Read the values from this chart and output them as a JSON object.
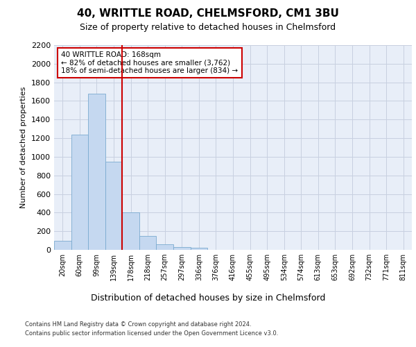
{
  "title": "40, WRITTLE ROAD, CHELMSFORD, CM1 3BU",
  "subtitle": "Size of property relative to detached houses in Chelmsford",
  "xlabel_bottom": "Distribution of detached houses by size in Chelmsford",
  "ylabel": "Number of detached properties",
  "footnote1": "Contains HM Land Registry data © Crown copyright and database right 2024.",
  "footnote2": "Contains public sector information licensed under the Open Government Licence v3.0.",
  "categories": [
    "20sqm",
    "60sqm",
    "99sqm",
    "139sqm",
    "178sqm",
    "218sqm",
    "257sqm",
    "297sqm",
    "336sqm",
    "376sqm",
    "416sqm",
    "455sqm",
    "495sqm",
    "534sqm",
    "574sqm",
    "613sqm",
    "653sqm",
    "692sqm",
    "732sqm",
    "771sqm",
    "811sqm"
  ],
  "values": [
    100,
    1240,
    1680,
    950,
    400,
    150,
    60,
    30,
    20,
    0,
    0,
    0,
    0,
    0,
    0,
    0,
    0,
    0,
    0,
    0,
    0
  ],
  "bar_color": "#c5d8f0",
  "bar_edge_color": "#7aaad0",
  "bar_width": 1.0,
  "vline_color": "#cc0000",
  "vline_x_index": 3.5,
  "ylim": [
    0,
    2200
  ],
  "yticks": [
    0,
    200,
    400,
    600,
    800,
    1000,
    1200,
    1400,
    1600,
    1800,
    2000,
    2200
  ],
  "annotation_title": "40 WRITTLE ROAD: 168sqm",
  "annotation_line1": "← 82% of detached houses are smaller (3,762)",
  "annotation_line2": "18% of semi-detached houses are larger (834) →",
  "annotation_box_facecolor": "#ffffff",
  "annotation_box_edgecolor": "#cc0000",
  "grid_color": "#c8d0e0",
  "bg_color": "#e8eef8",
  "title_fontsize": 11,
  "subtitle_fontsize": 9,
  "ylabel_fontsize": 8,
  "xtick_fontsize": 7,
  "ytick_fontsize": 8,
  "annot_fontsize": 7.5,
  "footnote_fontsize": 6,
  "xlabel_bottom_fontsize": 9
}
